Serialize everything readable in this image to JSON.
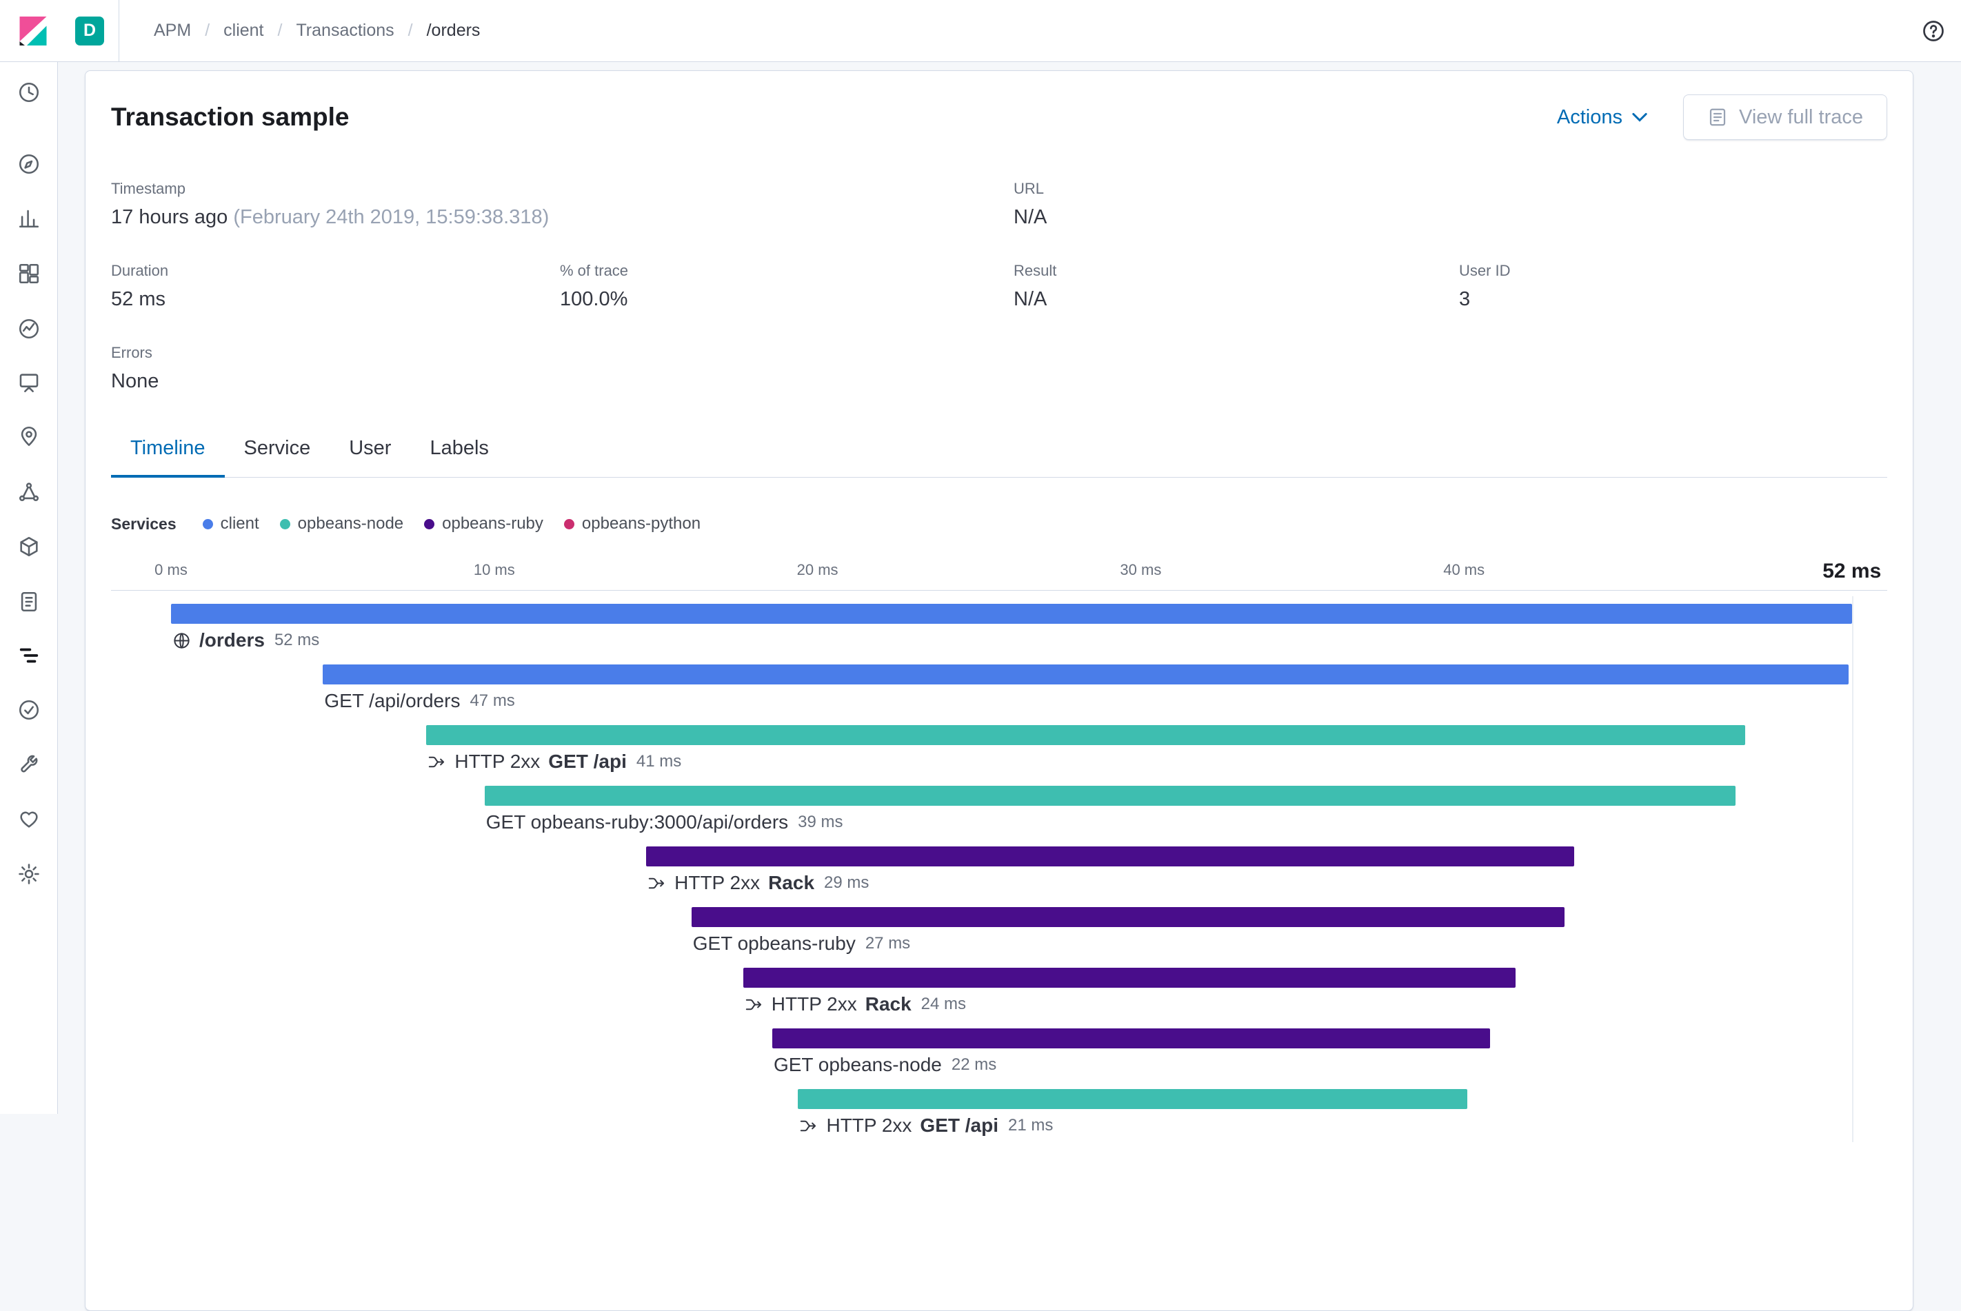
{
  "colors": {
    "accent": "#006BB4",
    "space_badge": "#00A69B"
  },
  "header": {
    "space_badge": "D",
    "breadcrumbs": [
      "APM",
      "client",
      "Transactions",
      "/orders"
    ]
  },
  "sidebar": {
    "items": [
      "recent",
      "discover",
      "visualize",
      "dashboard",
      "timelion",
      "canvas",
      "maps",
      "machine-learning",
      "infrastructure",
      "logs",
      "apm",
      "uptime",
      "dev-tools",
      "monitoring",
      "management"
    ],
    "active": "apm"
  },
  "card": {
    "title": "Transaction sample",
    "actions_label": "Actions",
    "view_full_trace_label": "View full trace",
    "meta": {
      "timestamp_label": "Timestamp",
      "timestamp_value": "17 hours ago",
      "timestamp_detail": "(February 24th 2019, 15:59:38.318)",
      "url_label": "URL",
      "url_value": "N/A",
      "duration_label": "Duration",
      "duration_value": "52 ms",
      "trace_pct_label": "% of trace",
      "trace_pct_value": "100.0%",
      "result_label": "Result",
      "result_value": "N/A",
      "user_id_label": "User ID",
      "user_id_value": "3",
      "errors_label": "Errors",
      "errors_value": "None"
    },
    "tabs": [
      {
        "label": "Timeline",
        "active": true
      },
      {
        "label": "Service",
        "active": false
      },
      {
        "label": "User",
        "active": false
      },
      {
        "label": "Labels",
        "active": false
      }
    ]
  },
  "timeline": {
    "legend_title": "Services",
    "services": [
      {
        "name": "client",
        "color": "#4A7DE9"
      },
      {
        "name": "opbeans-node",
        "color": "#3EBEB0"
      },
      {
        "name": "opbeans-ruby",
        "color": "#490D8B"
      },
      {
        "name": "opbeans-python",
        "color": "#CB2E6F"
      }
    ],
    "axis": {
      "ticks": [
        {
          "ms": 0,
          "label": "0 ms"
        },
        {
          "ms": 10,
          "label": "10 ms"
        },
        {
          "ms": 20,
          "label": "20 ms"
        },
        {
          "ms": 30,
          "label": "30 ms"
        },
        {
          "ms": 40,
          "label": "40 ms"
        }
      ],
      "total_ms": 52,
      "total_label": "52 ms"
    },
    "items": [
      {
        "kind": "transaction",
        "icon": "globe",
        "prefix": "",
        "name": "/orders",
        "duration_label": "52 ms",
        "service": "client",
        "start_ms": 0,
        "duration_ms": 52
      },
      {
        "kind": "span",
        "icon": "",
        "prefix": "",
        "name": "GET /api/orders",
        "duration_label": "47 ms",
        "service": "client",
        "start_ms": 4.7,
        "duration_ms": 47.2
      },
      {
        "kind": "transaction",
        "icon": "merge",
        "prefix": "HTTP 2xx",
        "name": "GET /api",
        "duration_label": "41 ms",
        "service": "opbeans-node",
        "start_ms": 7.9,
        "duration_ms": 40.8
      },
      {
        "kind": "span",
        "icon": "",
        "prefix": "",
        "name": "GET opbeans-ruby:3000/api/orders",
        "duration_label": "39 ms",
        "service": "opbeans-node",
        "start_ms": 9.7,
        "duration_ms": 38.7
      },
      {
        "kind": "transaction",
        "icon": "merge",
        "prefix": "HTTP 2xx",
        "name": "Rack",
        "duration_label": "29 ms",
        "service": "opbeans-ruby",
        "start_ms": 14.7,
        "duration_ms": 28.7
      },
      {
        "kind": "span",
        "icon": "",
        "prefix": "",
        "name": "GET opbeans-ruby",
        "duration_label": "27 ms",
        "service": "opbeans-ruby",
        "start_ms": 16.1,
        "duration_ms": 27.0
      },
      {
        "kind": "transaction",
        "icon": "merge",
        "prefix": "HTTP 2xx",
        "name": "Rack",
        "duration_label": "24 ms",
        "service": "opbeans-ruby",
        "start_ms": 17.7,
        "duration_ms": 23.9
      },
      {
        "kind": "span",
        "icon": "",
        "prefix": "",
        "name": "GET opbeans-node",
        "duration_label": "22 ms",
        "service": "opbeans-ruby",
        "start_ms": 18.6,
        "duration_ms": 22.2
      },
      {
        "kind": "transaction",
        "icon": "merge",
        "prefix": "HTTP 2xx",
        "name": "GET /api",
        "duration_label": "21 ms",
        "service": "opbeans-node",
        "start_ms": 19.4,
        "duration_ms": 20.7
      }
    ]
  }
}
